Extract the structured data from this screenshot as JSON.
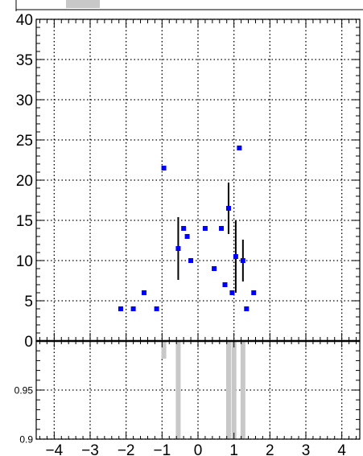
{
  "chart_data": [
    {
      "type": "scatter",
      "title": "",
      "xlabel": "",
      "ylabel": "",
      "xlim": [
        -4.5,
        4.5
      ],
      "ylim": [
        0,
        40
      ],
      "grid": true,
      "x_ticks": [
        "−4",
        "−3",
        "−2",
        "−1",
        "0",
        "1",
        "2",
        "3",
        "4"
      ],
      "y_ticks": [
        "0",
        "5",
        "10",
        "15",
        "20",
        "25",
        "30",
        "35",
        "40"
      ],
      "x_tick_values": [
        -4,
        -3,
        -2,
        -1,
        0,
        1,
        2,
        3,
        4
      ],
      "y_tick_values": [
        0,
        5,
        10,
        15,
        20,
        25,
        30,
        35,
        40
      ],
      "marker_color": "#0000ff",
      "points": [
        {
          "x": -2.15,
          "y": 4.0
        },
        {
          "x": -1.8,
          "y": 4.0
        },
        {
          "x": -1.5,
          "y": 6.0
        },
        {
          "x": -1.15,
          "y": 4.0
        },
        {
          "x": -0.95,
          "y": 21.5
        },
        {
          "x": -0.55,
          "y": 11.5,
          "err": 3.9
        },
        {
          "x": -0.4,
          "y": 14.0
        },
        {
          "x": -0.3,
          "y": 13.0
        },
        {
          "x": -0.2,
          "y": 10.0
        },
        {
          "x": 0.2,
          "y": 14.0
        },
        {
          "x": 0.45,
          "y": 9.0
        },
        {
          "x": 0.65,
          "y": 14.0
        },
        {
          "x": 0.75,
          "y": 7.0
        },
        {
          "x": 0.85,
          "y": 16.5,
          "err": 3.2
        },
        {
          "x": 0.95,
          "y": 6.0
        },
        {
          "x": 1.05,
          "y": 10.5,
          "err": 4.5
        },
        {
          "x": 1.15,
          "y": 24.0
        },
        {
          "x": 1.25,
          "y": 10.0,
          "err": 2.6
        },
        {
          "x": 1.35,
          "y": 4.0
        },
        {
          "x": 1.55,
          "y": 6.0
        }
      ]
    },
    {
      "type": "bar",
      "title": "",
      "xlabel": "",
      "ylabel": "",
      "xlim": [
        -4.5,
        4.5
      ],
      "ylim": [
        0.9,
        1.0
      ],
      "grid": true,
      "x_ticks": [
        "−4",
        "−3",
        "−2",
        "−1",
        "0",
        "1",
        "2",
        "3",
        "4"
      ],
      "y_ticks": [
        "0.9",
        "0.95"
      ],
      "x_tick_values": [
        -4,
        -3,
        -2,
        -1,
        0,
        1,
        2,
        3,
        4
      ],
      "y_tick_values": [
        0.9,
        0.95
      ],
      "bar_color": "#c8c8c8",
      "bars": [
        {
          "x": -0.95,
          "low": 0.982,
          "high": 1.0
        },
        {
          "x": -0.55,
          "low": 0.9,
          "high": 1.0
        },
        {
          "x": 0.85,
          "low": 0.9,
          "high": 1.0
        },
        {
          "x": 1.0,
          "low": 0.9,
          "high": 1.0
        },
        {
          "x": 1.25,
          "low": 0.9,
          "high": 1.0
        }
      ]
    }
  ]
}
